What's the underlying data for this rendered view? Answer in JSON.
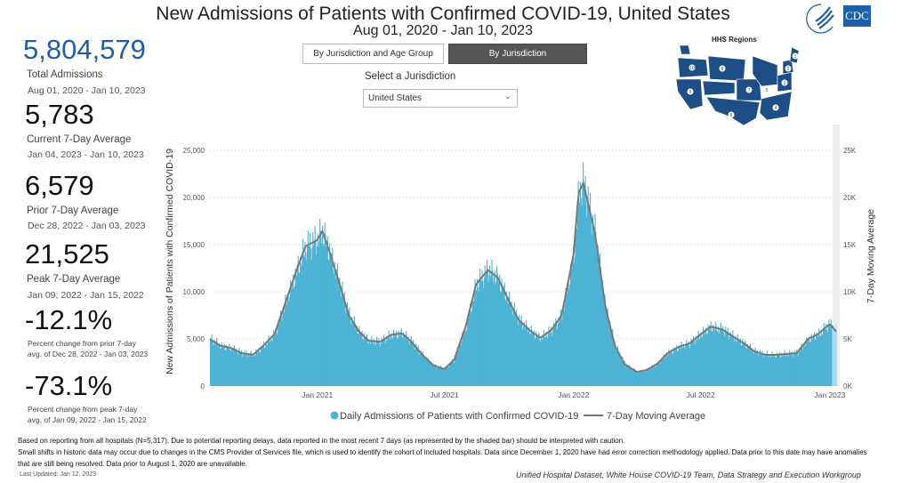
{
  "header": {
    "title": "New Admissions of Patients with Confirmed COVID-19, United States",
    "subtitle": "Aug 01, 2020 - Jan 10, 2023"
  },
  "logos": {
    "hhs": "HHS",
    "cdc": "CDC"
  },
  "kpis": [
    {
      "value": "5,804,579",
      "label": "Total Admissions",
      "dates": "Aug 01, 2020 - Jan 10, 2023"
    },
    {
      "value": "5,783",
      "label": "Current 7-Day Average",
      "dates": "Jan 04, 2023 - Jan 10, 2023"
    },
    {
      "value": "6,579",
      "label": "Prior 7-Day Average",
      "dates": "Dec 28, 2022 - Jan 03, 2023"
    },
    {
      "value": "21,525",
      "label": "Peak 7-Day Average",
      "dates": "Jan 09, 2022 - Jan 15, 2022"
    },
    {
      "value": "-12.1%",
      "label": "Percent change from prior 7-day",
      "dates": "avg. of Dec 28, 2022 - Jan 03, 2023"
    },
    {
      "value": "-73.1%",
      "label": "Percent change from peak 7-day",
      "dates": "avg. of Jan 09, 2022 - Jan 15, 2022"
    }
  ],
  "controls": {
    "btn_age": "By Jurisdiction and Age Group",
    "btn_juris": "By Jurisdiction",
    "select_label": "Select a Jurisdiction",
    "select_value": "United States"
  },
  "map": {
    "title": "HHS Regions",
    "regions": [
      "1",
      "2",
      "3",
      "4",
      "5",
      "6",
      "7",
      "8",
      "9",
      "10"
    ]
  },
  "colors": {
    "bar": "#4db3d4",
    "bar_recent": "#a9d8e6",
    "line": "#777777",
    "accent": "#1f5fa6",
    "map": "#1d4f86"
  },
  "chart_data": {
    "type": "bar",
    "ylabel": "New Admissions of Patients with Confirmed COVID-19",
    "y2label": "7-Day Moving Average",
    "ylim": [
      0,
      25000
    ],
    "yticks": [
      "0",
      "5,000",
      "10,000",
      "15,000",
      "20,000",
      "25,000"
    ],
    "y2ticks": [
      "0K",
      "5K",
      "10K",
      "15K",
      "20K",
      "25K"
    ],
    "xticks": [
      {
        "date": "2021-01-01",
        "label": "Jan 2021"
      },
      {
        "date": "2021-07-01",
        "label": "Jul 2021"
      },
      {
        "date": "2022-01-01",
        "label": "Jan 2022"
      },
      {
        "date": "2022-07-01",
        "label": "Jul 2022"
      },
      {
        "date": "2023-01-01",
        "label": "Jan 2023"
      }
    ],
    "xrange": [
      "2020-08-01",
      "2023-01-10"
    ],
    "grid": true,
    "legend": {
      "position": "bottom",
      "bars": "Daily Admissions of Patients with Confirmed COVID-19",
      "line": "7-Day Moving Average"
    },
    "moving_average": {
      "dates": [
        "2020-08-01",
        "2020-08-15",
        "2020-09-01",
        "2020-09-15",
        "2020-10-01",
        "2020-10-15",
        "2020-11-01",
        "2020-11-15",
        "2020-12-01",
        "2020-12-15",
        "2021-01-01",
        "2021-01-08",
        "2021-01-15",
        "2021-02-01",
        "2021-02-15",
        "2021-03-01",
        "2021-03-15",
        "2021-04-01",
        "2021-04-15",
        "2021-05-01",
        "2021-05-15",
        "2021-06-01",
        "2021-06-15",
        "2021-07-01",
        "2021-07-15",
        "2021-08-01",
        "2021-08-15",
        "2021-09-01",
        "2021-09-15",
        "2021-10-01",
        "2021-10-15",
        "2021-11-01",
        "2021-11-15",
        "2021-12-01",
        "2021-12-15",
        "2022-01-01",
        "2022-01-08",
        "2022-01-15",
        "2022-02-01",
        "2022-02-15",
        "2022-03-01",
        "2022-03-15",
        "2022-04-01",
        "2022-04-15",
        "2022-05-01",
        "2022-05-15",
        "2022-06-01",
        "2022-06-15",
        "2022-07-01",
        "2022-07-15",
        "2022-08-01",
        "2022-08-15",
        "2022-09-01",
        "2022-09-15",
        "2022-10-01",
        "2022-10-15",
        "2022-11-01",
        "2022-11-15",
        "2022-12-01",
        "2022-12-15",
        "2023-01-01",
        "2023-01-10"
      ],
      "values": [
        5000,
        4300,
        4000,
        3500,
        3300,
        4200,
        5500,
        8500,
        12000,
        14800,
        15500,
        16400,
        15000,
        11000,
        7500,
        5800,
        4800,
        4700,
        5400,
        5600,
        4700,
        3200,
        2200,
        1800,
        2800,
        6500,
        10800,
        12300,
        11500,
        9000,
        7000,
        5800,
        5100,
        6000,
        7500,
        14000,
        20500,
        21525,
        16000,
        8500,
        4200,
        2300,
        1500,
        1700,
        2400,
        3500,
        4200,
        4500,
        5500,
        6300,
        6000,
        5300,
        4500,
        3700,
        3300,
        3300,
        3400,
        3500,
        5000,
        5500,
        6600,
        5783
      ]
    },
    "shaded_recent_days": 7
  },
  "footer": {
    "note1": "Based on reporting from all hospitals (N=5,317). Due to potential reporting delays, data reported in the most recent 7 days (as represented by the shaded bar) should be interpreted with caution.",
    "note2": "Small shifts in historic data may occur due to changes in the CMS Provider of Services file, which is used to identify the cohort of included hospitals. Data since December 1, 2020 have had error correction methodology applied. Data prior to this date may have anomalies that are still being resolved. Data prior to August 1, 2020 are unavailable.",
    "updated": "Last Updated: Jan 12, 2023",
    "source": "Unified Hospital Dataset, White House COVID-19 Team, Data Strategy and Execution Workgroup"
  }
}
